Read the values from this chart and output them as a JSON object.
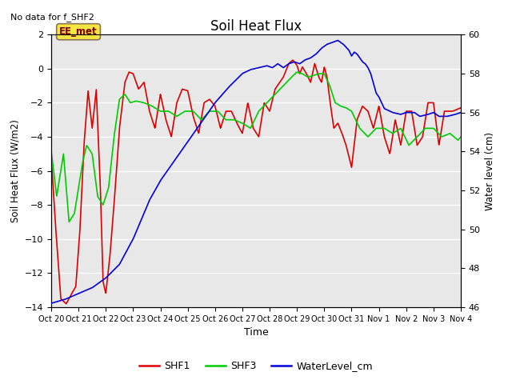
{
  "title": "Soil Heat Flux",
  "no_data_text": "No data for f_SHF2",
  "ylabel_left": "Soil Heat Flux (W/m2)",
  "ylabel_right": "Water level (cm)",
  "xlabel": "Time",
  "annotation_text": "EE_met",
  "ylim_left": [
    -14,
    2
  ],
  "ylim_right": [
    46,
    60
  ],
  "yticks_left": [
    2,
    0,
    -2,
    -4,
    -6,
    -8,
    -10,
    -12,
    -14
  ],
  "yticks_right": [
    60,
    58,
    56,
    54,
    52,
    50,
    48,
    46
  ],
  "bg_color": "#e8e8e8",
  "fig_bg_color": "#ffffff",
  "shf1_color": "#dd0000",
  "shf3_color": "#00cc00",
  "water_color": "#0000dd",
  "x_tick_labels": [
    "Oct 20",
    "Oct 21",
    "Oct 22",
    "Oct 23",
    "Oct 24",
    "Oct 25",
    "Oct 26",
    "Oct 27",
    "Oct 28",
    "Oct 29",
    "Oct 30",
    "Oct 31",
    "Nov 1",
    "Nov 2",
    "Nov 3",
    "Nov 4"
  ],
  "shf1_kp_x": [
    0,
    0.15,
    0.35,
    0.55,
    0.75,
    0.9,
    1.05,
    1.2,
    1.35,
    1.5,
    1.65,
    1.8,
    1.9,
    2.0,
    2.15,
    2.3,
    2.5,
    2.7,
    2.85,
    3.0,
    3.2,
    3.4,
    3.6,
    3.8,
    4.0,
    4.2,
    4.4,
    4.6,
    4.8,
    5.0,
    5.2,
    5.4,
    5.6,
    5.8,
    6.0,
    6.2,
    6.4,
    6.6,
    6.8,
    7.0,
    7.2,
    7.4,
    7.6,
    7.8,
    8.0,
    8.2,
    8.5,
    8.7,
    8.85,
    9.0,
    9.1,
    9.2,
    9.35,
    9.5,
    9.65,
    9.8,
    9.9,
    10.0,
    10.1,
    10.2,
    10.35,
    10.5,
    10.65,
    10.8,
    11.0,
    11.2,
    11.4,
    11.6,
    11.8,
    12.0,
    12.2,
    12.4,
    12.6,
    12.8,
    13.0,
    13.2,
    13.4,
    13.6,
    13.8,
    14.0,
    14.2,
    14.4,
    14.7,
    15.0
  ],
  "shf1_kp_y": [
    -5.2,
    -9.0,
    -13.5,
    -13.8,
    -13.2,
    -12.8,
    -9.5,
    -4.5,
    -1.3,
    -3.5,
    -1.2,
    -7.0,
    -12.5,
    -13.2,
    -11.0,
    -8.0,
    -3.5,
    -0.8,
    -0.2,
    -0.3,
    -1.2,
    -0.8,
    -2.5,
    -3.5,
    -1.5,
    -3.0,
    -4.0,
    -2.0,
    -1.2,
    -1.3,
    -2.8,
    -3.8,
    -2.0,
    -1.8,
    -2.2,
    -3.5,
    -2.5,
    -2.5,
    -3.2,
    -3.8,
    -2.0,
    -3.5,
    -4.0,
    -2.0,
    -2.5,
    -1.2,
    -0.5,
    0.3,
    0.5,
    0.2,
    -0.3,
    0.1,
    -0.3,
    -0.8,
    0.3,
    -0.5,
    -0.8,
    0.1,
    -0.5,
    -1.8,
    -3.5,
    -3.2,
    -3.8,
    -4.5,
    -5.8,
    -3.0,
    -2.2,
    -2.5,
    -3.5,
    -2.2,
    -4.0,
    -5.0,
    -3.0,
    -4.5,
    -2.5,
    -2.5,
    -4.5,
    -4.0,
    -2.0,
    -2.0,
    -4.5,
    -2.5,
    -2.5,
    -2.3
  ],
  "shf3_kp_x": [
    0,
    0.2,
    0.45,
    0.65,
    0.85,
    1.0,
    1.15,
    1.3,
    1.5,
    1.7,
    1.9,
    2.1,
    2.3,
    2.5,
    2.7,
    2.9,
    3.1,
    3.4,
    3.7,
    4.0,
    4.3,
    4.6,
    4.9,
    5.2,
    5.5,
    5.8,
    6.1,
    6.4,
    6.7,
    7.0,
    7.3,
    7.6,
    7.9,
    8.2,
    8.5,
    8.8,
    9.0,
    9.2,
    9.4,
    9.6,
    9.8,
    10.0,
    10.2,
    10.4,
    10.6,
    10.8,
    11.0,
    11.3,
    11.6,
    11.9,
    12.2,
    12.5,
    12.8,
    13.1,
    13.4,
    13.7,
    14.0,
    14.3,
    14.6,
    14.9,
    15.0
  ],
  "shf3_kp_y": [
    -4.8,
    -7.5,
    -5.0,
    -9.0,
    -8.5,
    -7.0,
    -5.5,
    -4.5,
    -5.0,
    -7.5,
    -8.0,
    -7.0,
    -4.0,
    -1.8,
    -1.5,
    -2.0,
    -1.9,
    -2.0,
    -2.2,
    -2.5,
    -2.5,
    -2.8,
    -2.5,
    -2.5,
    -3.0,
    -2.5,
    -2.5,
    -3.0,
    -3.0,
    -3.2,
    -3.5,
    -2.5,
    -2.0,
    -1.5,
    -1.0,
    -0.5,
    -0.2,
    -0.3,
    -0.5,
    -0.4,
    -0.3,
    -0.3,
    -1.0,
    -2.0,
    -2.2,
    -2.3,
    -2.5,
    -3.5,
    -4.0,
    -3.5,
    -3.5,
    -3.8,
    -3.5,
    -4.5,
    -4.0,
    -3.5,
    -3.5,
    -4.0,
    -3.8,
    -4.2,
    -4.0
  ],
  "water_kp_x": [
    0,
    0.5,
    1.0,
    1.5,
    2.0,
    2.5,
    3.0,
    3.3,
    3.6,
    4.0,
    4.5,
    5.0,
    5.5,
    6.0,
    6.5,
    7.0,
    7.3,
    7.6,
    7.9,
    8.1,
    8.3,
    8.5,
    8.7,
    8.9,
    9.1,
    9.3,
    9.5,
    9.7,
    9.9,
    10.1,
    10.3,
    10.5,
    10.7,
    10.9,
    11.0,
    11.1,
    11.2,
    11.3,
    11.4,
    11.5,
    11.6,
    11.7,
    11.8,
    11.9,
    12.0,
    12.1,
    12.2,
    12.5,
    12.8,
    13.0,
    13.3,
    13.5,
    13.8,
    14.0,
    14.2,
    14.5,
    14.8,
    15.0
  ],
  "water_kp_y": [
    46.2,
    46.4,
    46.7,
    47.0,
    47.5,
    48.2,
    49.5,
    50.5,
    51.5,
    52.5,
    53.5,
    54.5,
    55.5,
    56.5,
    57.3,
    58.0,
    58.2,
    58.3,
    58.4,
    58.3,
    58.5,
    58.3,
    58.5,
    58.6,
    58.5,
    58.7,
    58.8,
    59.0,
    59.3,
    59.5,
    59.6,
    59.7,
    59.5,
    59.2,
    58.9,
    59.1,
    59.0,
    58.8,
    58.6,
    58.5,
    58.3,
    58.0,
    57.5,
    57.0,
    56.8,
    56.5,
    56.2,
    56.0,
    55.9,
    56.0,
    56.0,
    55.8,
    55.9,
    56.0,
    55.8,
    55.8,
    55.9,
    56.0
  ]
}
